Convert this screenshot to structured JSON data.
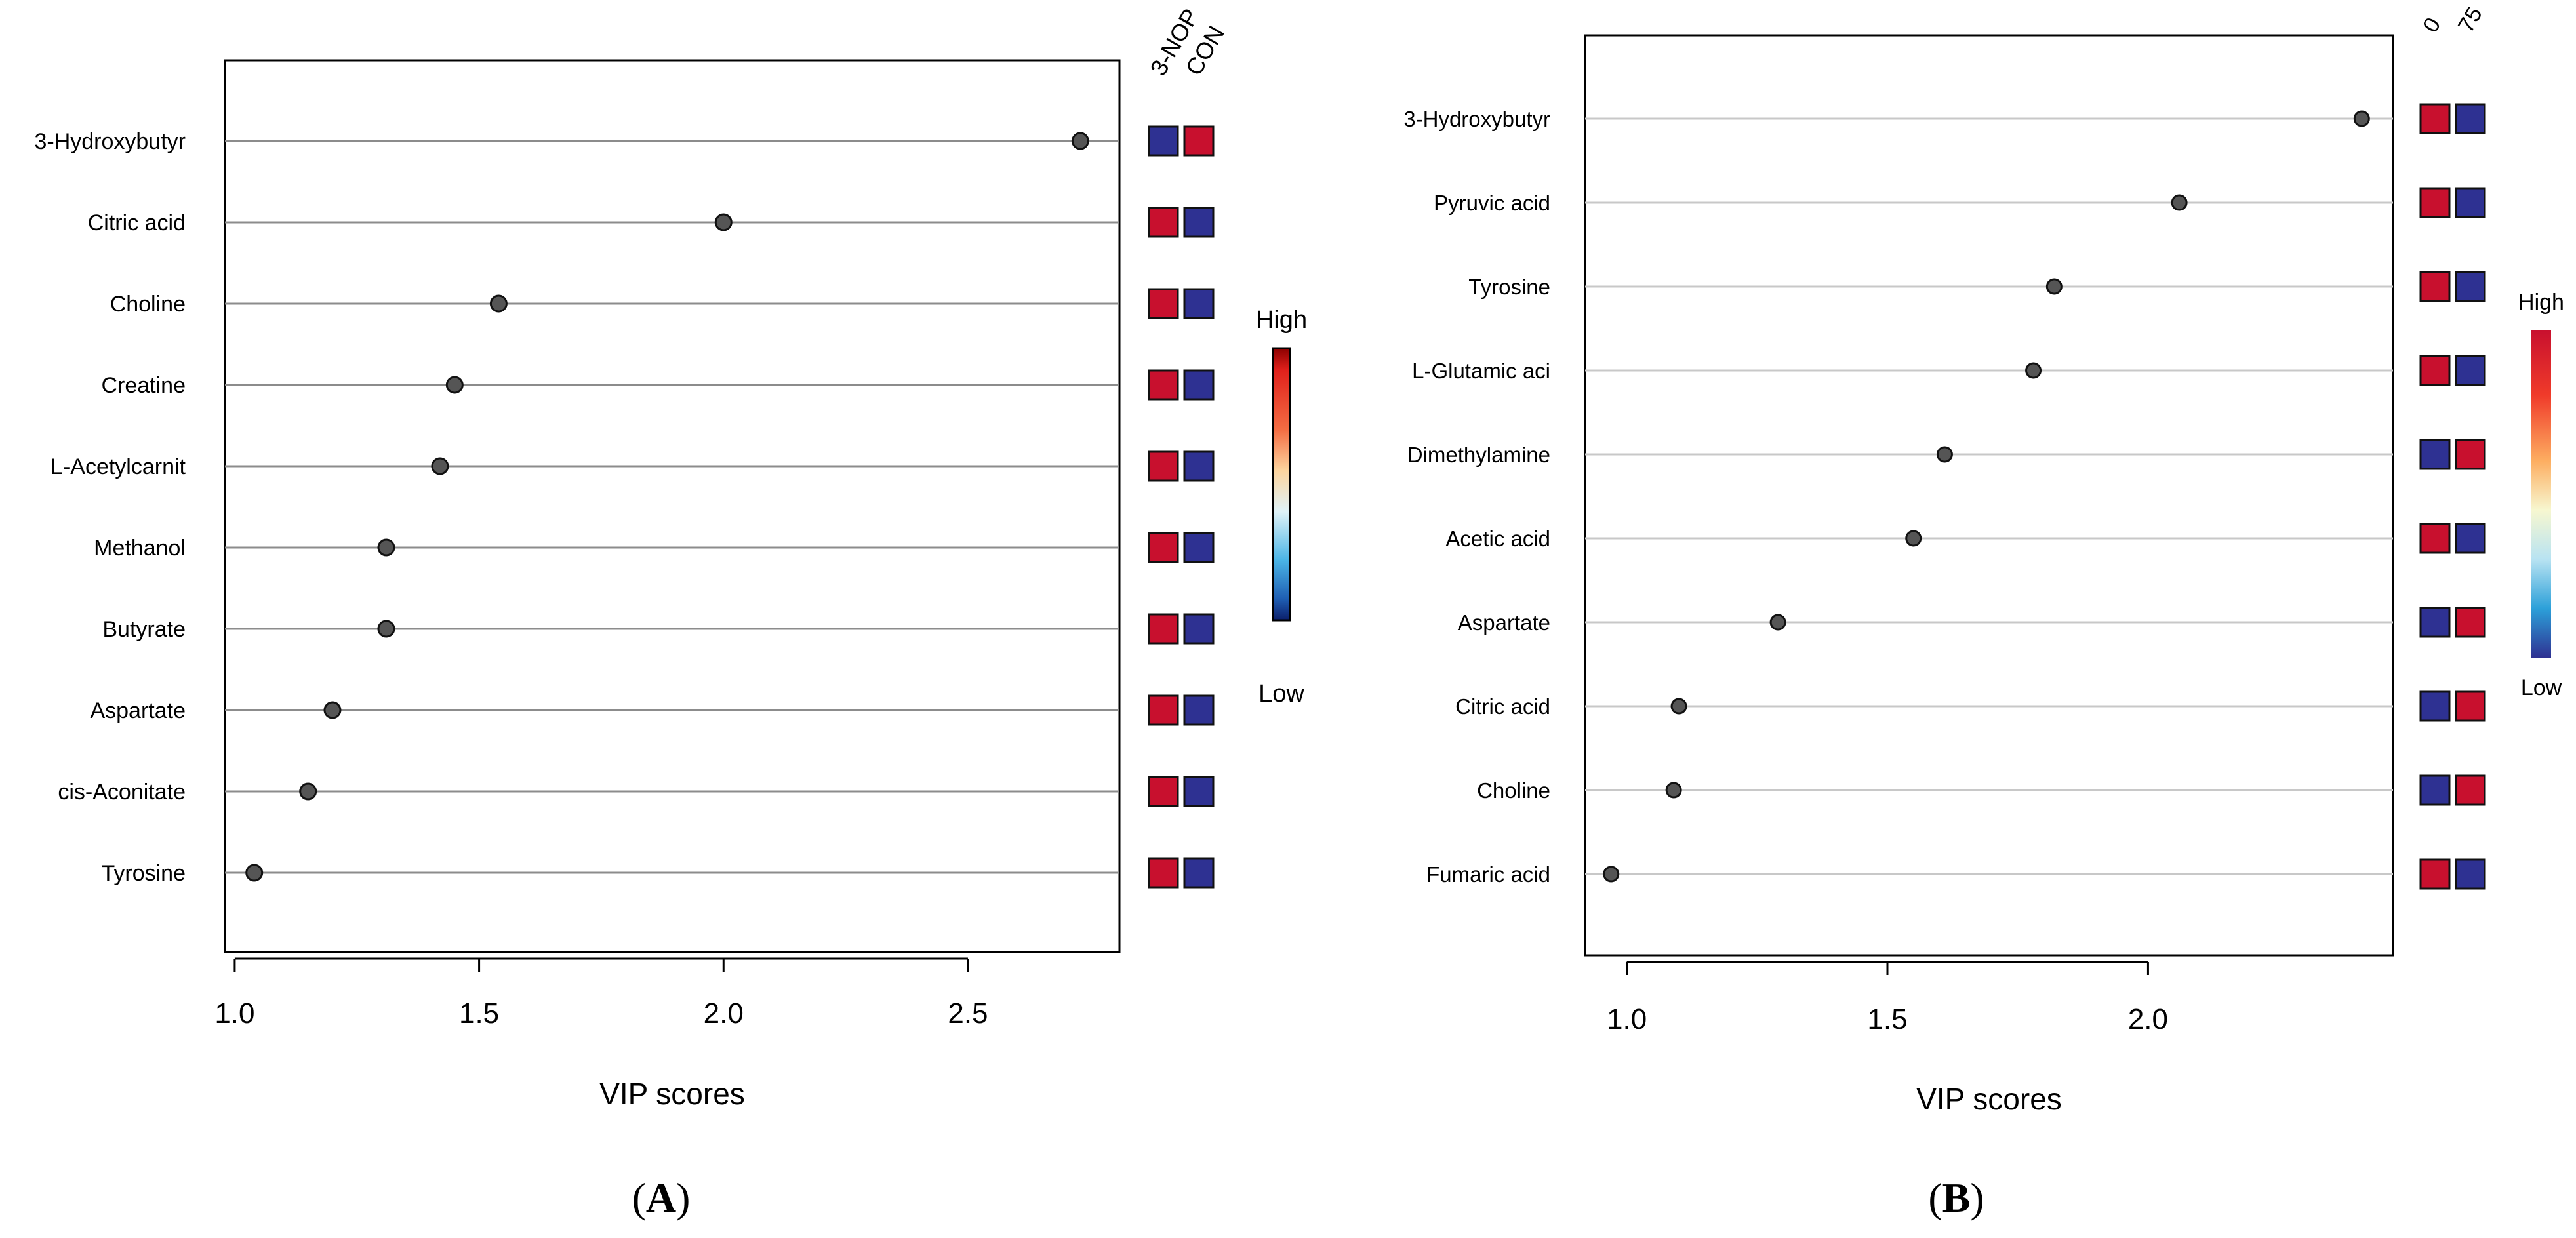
{
  "chart_data": [
    {
      "type": "scatter",
      "panel_label": "(A)",
      "panel_letter": "A",
      "xlabel": "VIP scores",
      "xticks": [
        "1.0",
        "1.5",
        "2.0",
        "2.5"
      ],
      "xlim": [
        0.98,
        2.81
      ],
      "features": [
        "3-Hydroxybutyr",
        "Citric acid",
        "Choline",
        "Creatine",
        "L-Acetylcarnit",
        "Methanol",
        "Butyrate",
        "Aspartate",
        "cis-Aconitate",
        "Tyrosine"
      ],
      "values": [
        2.73,
        2.0,
        1.54,
        1.45,
        1.42,
        1.31,
        1.31,
        1.2,
        1.15,
        1.04
      ],
      "groups": [
        "3-NOP",
        "CON"
      ],
      "heat": [
        [
          "low",
          "high"
        ],
        [
          "high",
          "low"
        ],
        [
          "high",
          "low"
        ],
        [
          "high",
          "low"
        ],
        [
          "high",
          "low"
        ],
        [
          "high",
          "low"
        ],
        [
          "high",
          "low"
        ],
        [
          "high",
          "low"
        ],
        [
          "high",
          "low"
        ],
        [
          "high",
          "low"
        ]
      ],
      "legend_high": "High",
      "legend_low": "Low"
    },
    {
      "type": "scatter",
      "panel_label": "(B)",
      "panel_letter": "B",
      "xlabel": "VIP scores",
      "xticks": [
        "1.0",
        "1.5",
        "2.0"
      ],
      "xlim": [
        0.92,
        2.47
      ],
      "features": [
        "3-Hydroxybutyr",
        "Pyruvic acid",
        "Tyrosine",
        "L-Glutamic aci",
        "Dimethylamine",
        "Acetic acid",
        "Aspartate",
        "Citric acid",
        "Choline",
        "Fumaric acid"
      ],
      "values": [
        2.41,
        2.06,
        1.82,
        1.78,
        1.61,
        1.55,
        1.29,
        1.1,
        1.09,
        0.97
      ],
      "groups": [
        "0",
        "75"
      ],
      "heat": [
        [
          "high",
          "low"
        ],
        [
          "high",
          "low"
        ],
        [
          "high",
          "low"
        ],
        [
          "high",
          "low"
        ],
        [
          "low",
          "high"
        ],
        [
          "high",
          "low"
        ],
        [
          "low",
          "high"
        ],
        [
          "low",
          "high"
        ],
        [
          "low",
          "high"
        ],
        [
          "high",
          "low"
        ]
      ],
      "legend_high": "High",
      "legend_low": "Low"
    }
  ],
  "colors": {
    "high": "#c8102e",
    "low": "#2e3192",
    "point": "#555555",
    "grid": "#b3b3b3"
  }
}
